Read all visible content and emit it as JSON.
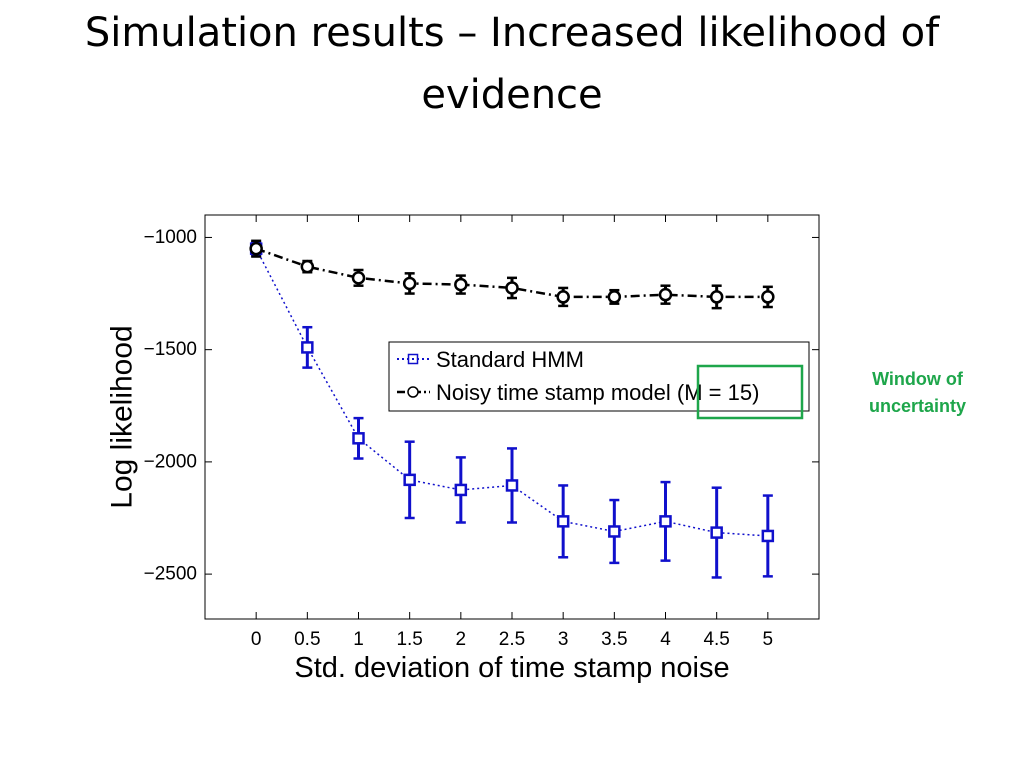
{
  "slide": {
    "title_line1": "Simulation results – Increased likelihood of",
    "title_line2": "evidence"
  },
  "callout": {
    "line1": "Window of",
    "line2": "uncertainty",
    "color": "#1ea64b"
  },
  "chart_data": {
    "type": "line",
    "xlabel": "Std. deviation of time stamp noise",
    "ylabel": "Log likelihood",
    "xlim": [
      -0.5,
      5.5
    ],
    "ylim": [
      -2700,
      -900
    ],
    "xticks": [
      0,
      0.5,
      1,
      1.5,
      2,
      2.5,
      3,
      3.5,
      4,
      4.5,
      5
    ],
    "xtick_labels": [
      "0",
      "0.5",
      "1",
      "1.5",
      "2",
      "2.5",
      "3",
      "3.5",
      "4",
      "4.5",
      "5"
    ],
    "yticks": [
      -1000,
      -1500,
      -2000,
      -2500
    ],
    "ytick_labels": [
      "−1000",
      "−1500",
      "−2000",
      "−2500"
    ],
    "grid": false,
    "legend_position": "upper-right",
    "x": [
      0,
      0.5,
      1,
      1.5,
      2,
      2.5,
      3,
      3.5,
      4,
      4.5,
      5
    ],
    "series": [
      {
        "name": "Standard HMM",
        "values": [
          -1050,
          -1490,
          -1895,
          -2080,
          -2125,
          -2105,
          -2265,
          -2310,
          -2265,
          -2315,
          -2330
        ],
        "errors": [
          30,
          90,
          90,
          170,
          145,
          165,
          160,
          140,
          175,
          200,
          180
        ],
        "color": "#1010cc",
        "marker": "square",
        "line_style": "dotted"
      },
      {
        "name": "Noisy time stamp model",
        "legend_suffix": "(M = 15)",
        "values": [
          -1050,
          -1130,
          -1180,
          -1205,
          -1210,
          -1225,
          -1265,
          -1265,
          -1255,
          -1265,
          -1265
        ],
        "errors": [
          35,
          25,
          35,
          45,
          40,
          45,
          40,
          30,
          40,
          50,
          45
        ],
        "color": "#000000",
        "marker": "circle",
        "line_style": "dashdot"
      }
    ],
    "highlight_color": "#1ea64b"
  }
}
